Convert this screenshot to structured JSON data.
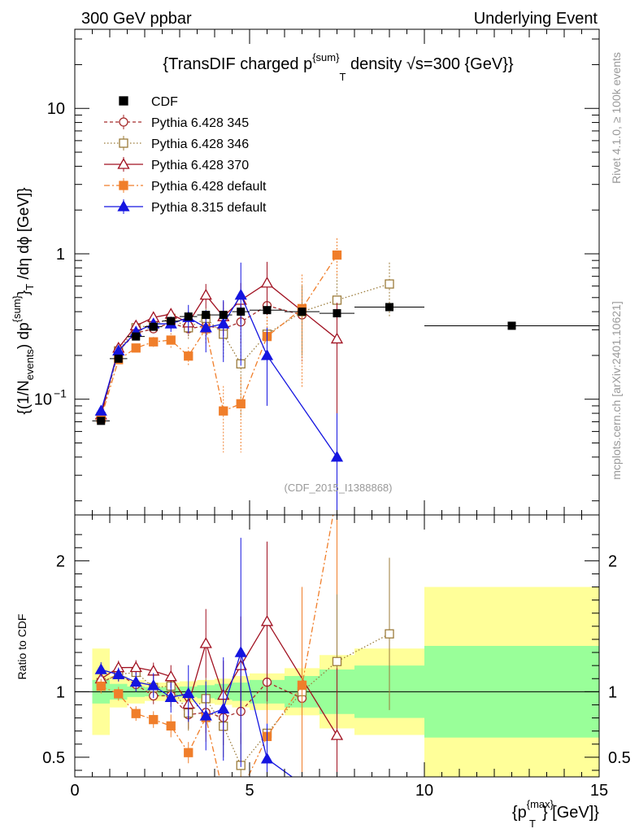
{
  "header": {
    "left": "300 GeV ppbar",
    "right": "Underlying Event"
  },
  "side_labels": {
    "rivet": "Rivet 4.1.0, ≥ 100k events",
    "mcplots": "mcplots.cern.ch [arXiv:2401.10621]"
  },
  "chart_data": {
    "type": "line",
    "title": "{TransDIF charged p^{sum}_T density √s=300 {GeV}}",
    "title_parts": {
      "a": "{TransDIF charged p",
      "sup": "{sum}",
      "sub": "T",
      "b": " density ",
      "root": "√s",
      "c": "=300 {GeV}}"
    },
    "ylabel_parts": {
      "a": "{(1/N",
      "sub1": "events",
      "b": ") dp",
      "sup2": "{sum}",
      "c": "}",
      "sub3": "T",
      "d": " /dη  dϕ [GeV]}"
    },
    "xlabel_parts": {
      "a": "{p",
      "sup": "{max}",
      "sub": "T",
      "b": "} [GeV]}"
    },
    "ratio_ylabel": "Ratio to CDF",
    "watermark": "(CDF_2015_I1388868)",
    "xlim": [
      0,
      15
    ],
    "ylim": [
      0.016,
      35
    ],
    "ylog": true,
    "ratio_ylim": [
      0.35,
      2.35
    ],
    "x_ticks": [
      {
        "v": 0,
        "label": "0"
      },
      {
        "v": 5,
        "label": "5"
      },
      {
        "v": 10,
        "label": "10"
      },
      {
        "v": 15,
        "label": "15"
      }
    ],
    "y_ticks": [
      {
        "v": 0.1,
        "label": "10",
        "sup": "−1"
      },
      {
        "v": 1,
        "label": "1"
      },
      {
        "v": 10,
        "label": "10"
      }
    ],
    "ratio_ticks": [
      {
        "v": 0.5,
        "label": "0.5"
      },
      {
        "v": 1,
        "label": "1"
      },
      {
        "v": 2,
        "label": "2"
      }
    ],
    "data": {
      "name": "CDF",
      "x": [
        0.75,
        1.25,
        1.75,
        2.25,
        2.75,
        3.25,
        3.75,
        4.25,
        4.75,
        5.5,
        6.5,
        7.5,
        9.0,
        12.5
      ],
      "xerr": [
        0.25,
        0.25,
        0.25,
        0.25,
        0.25,
        0.25,
        0.25,
        0.25,
        0.25,
        0.5,
        0.5,
        0.5,
        1.0,
        2.5
      ],
      "y": [
        0.071,
        0.19,
        0.27,
        0.315,
        0.345,
        0.37,
        0.38,
        0.38,
        0.4,
        0.41,
        0.4,
        0.39,
        0.43,
        0.32
      ],
      "band_stat": [
        0.09,
        0.06,
        0.04,
        0.035,
        0.035,
        0.04,
        0.05,
        0.06,
        0.07,
        0.09,
        0.12,
        0.17,
        0.2,
        0.35
      ],
      "band_total": [
        0.33,
        0.12,
        0.09,
        0.07,
        0.07,
        0.08,
        0.09,
        0.1,
        0.12,
        0.14,
        0.18,
        0.28,
        0.33,
        0.8
      ]
    },
    "series": [
      {
        "name": "Pythia 6.428 345",
        "color": "#a52a2a",
        "dash": "4,3",
        "marker": "circle-open",
        "x": [
          0.75,
          1.25,
          1.75,
          2.25,
          2.75,
          3.25,
          3.75,
          4.25,
          4.75,
          5.5,
          6.5
        ],
        "y": [
          0.076,
          0.215,
          0.285,
          0.305,
          0.335,
          0.305,
          0.32,
          0.305,
          0.34,
          0.44,
          0.38
        ],
        "yerr": [
          0.004,
          0.01,
          0.015,
          0.02,
          0.03,
          0.04,
          0.06,
          0.08,
          0.1,
          0.15,
          0.2
        ]
      },
      {
        "name": "Pythia 6.428 346",
        "color": "#9b7b3a",
        "dash": "1.5,2.5",
        "marker": "square-open",
        "x": [
          0.75,
          1.25,
          1.75,
          2.25,
          2.75,
          3.25,
          3.75,
          4.25,
          4.75,
          5.5,
          6.5,
          7.5,
          9.0
        ],
        "y": [
          0.076,
          0.215,
          0.31,
          0.325,
          0.36,
          0.31,
          0.36,
          0.28,
          0.175,
          0.28,
          0.4,
          0.48,
          0.62
        ],
        "yerr": [
          0.004,
          0.01,
          0.015,
          0.02,
          0.03,
          0.05,
          0.06,
          0.09,
          0.1,
          0.15,
          0.2,
          0.25,
          0.25
        ]
      },
      {
        "name": "Pythia 6.428 370",
        "color": "#a01020",
        "dash": "",
        "marker": "triangle-open",
        "x": [
          0.75,
          1.25,
          1.75,
          2.25,
          2.75,
          3.25,
          3.75,
          4.25,
          4.75,
          5.5,
          7.5
        ],
        "y": [
          0.078,
          0.225,
          0.32,
          0.365,
          0.385,
          0.335,
          0.52,
          0.37,
          0.48,
          0.63,
          0.26
        ],
        "yerr": [
          0.004,
          0.01,
          0.015,
          0.02,
          0.03,
          0.04,
          0.1,
          0.1,
          0.15,
          0.25,
          0.2
        ]
      },
      {
        "name": "Pythia 6.428 default",
        "color": "#f07e2a",
        "dash": "7,3,2,3",
        "marker": "square-filled",
        "x": [
          0.75,
          1.25,
          1.75,
          2.25,
          2.75,
          3.25,
          3.75,
          4.25,
          4.75,
          5.5,
          6.5,
          7.5
        ],
        "y": [
          0.074,
          0.187,
          0.225,
          0.248,
          0.255,
          0.198,
          0.305,
          0.083,
          0.093,
          0.27,
          0.42,
          0.98
        ],
        "yerr": [
          0.004,
          0.01,
          0.015,
          0.02,
          0.03,
          0.03,
          0.07,
          0.04,
          0.05,
          0.1,
          0.3,
          0.3
        ]
      },
      {
        "name": "Pythia 8.315 default",
        "color": "#1515e0",
        "dash": "",
        "marker": "triangle-filled",
        "x": [
          0.75,
          1.25,
          1.75,
          2.25,
          2.75,
          3.25,
          3.75,
          4.25,
          4.75,
          5.5,
          7.5
        ],
        "y": [
          0.083,
          0.215,
          0.29,
          0.33,
          0.33,
          0.365,
          0.31,
          0.33,
          0.52,
          0.2,
          0.04
        ],
        "yerr": [
          0.004,
          0.01,
          0.02,
          0.03,
          0.04,
          0.08,
          0.1,
          0.15,
          0.35,
          0.11,
          0.04
        ]
      }
    ]
  }
}
